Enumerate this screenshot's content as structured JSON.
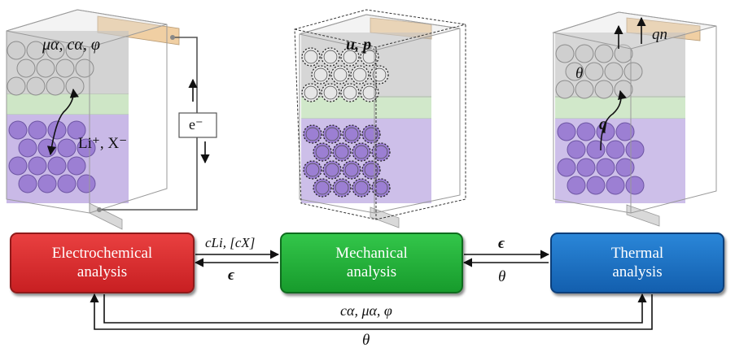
{
  "colors": {
    "electro": "#e0302f",
    "mech": "#22b43c",
    "thermal": "#1b73c7",
    "anode": "#9c7fd3",
    "separator": "#b9dcae",
    "cathode": "#b5b5b5",
    "tab": "#f0cfa3"
  },
  "blocks": {
    "electro": "Electrochemical\nanalysis",
    "mech": "Mechanical\nanalysis",
    "thermal": "Thermal\nanalysis"
  },
  "cells": {
    "left": {
      "label_vars": "μα, cα, φ",
      "ions": "Li⁺, X⁻",
      "electron": "e⁻"
    },
    "middle": {
      "label_vars": "u, p"
    },
    "right": {
      "theta": "θ",
      "q": "q",
      "qn": "qn"
    }
  },
  "couplings": {
    "e_to_m": "cLi, [cX]",
    "m_to_e": "ϵ",
    "m_to_t": "ϵ",
    "t_to_m": "θ",
    "e_to_t": "cα, μα, φ",
    "t_to_e": "θ"
  }
}
